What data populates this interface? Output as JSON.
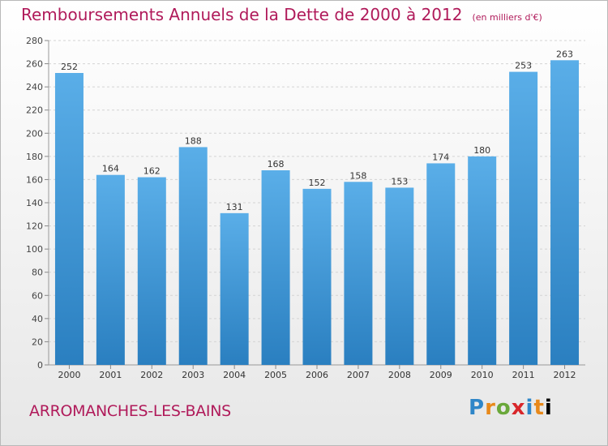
{
  "header": {
    "title": "Remboursements Annuels de la Dette de 2000 à 2012",
    "subtitle": "(en milliers d'€)"
  },
  "footer": {
    "commune": "ARROMANCHES-LES-BAINS",
    "brand_letters": [
      "P",
      "r",
      "o",
      "x",
      "i",
      "t",
      "i"
    ]
  },
  "colors": {
    "bar_light": "#5aaee8",
    "bar_dark": "#2a7fc0",
    "title": "#b01a5a"
  },
  "chart_data": {
    "type": "bar",
    "categories": [
      "2000",
      "2001",
      "2002",
      "2003",
      "2004",
      "2005",
      "2006",
      "2007",
      "2008",
      "2009",
      "2010",
      "2011",
      "2012"
    ],
    "values": [
      252,
      164,
      162,
      188,
      131,
      168,
      152,
      158,
      153,
      174,
      180,
      253,
      263
    ],
    "ylim": [
      0,
      280
    ],
    "yticks": [
      0,
      20,
      40,
      60,
      80,
      100,
      120,
      140,
      160,
      180,
      200,
      220,
      240,
      260,
      280
    ],
    "grid": true
  }
}
